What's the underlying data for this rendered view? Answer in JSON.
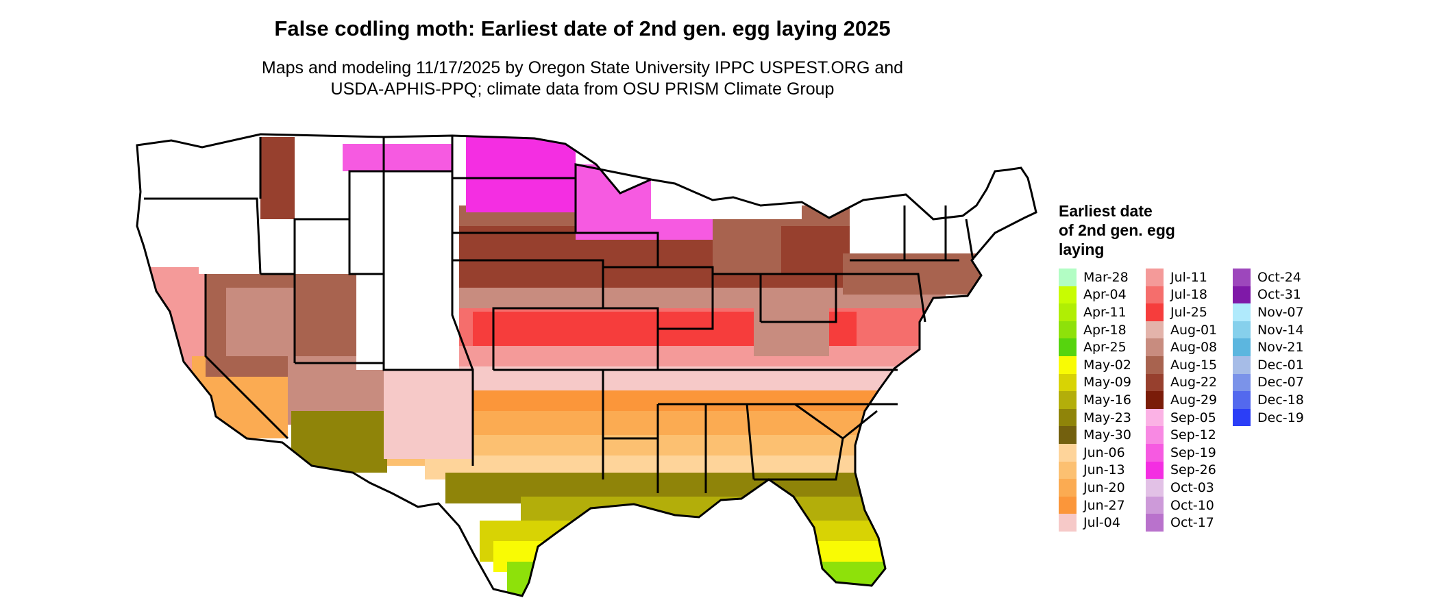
{
  "title": "False codling moth: Earliest date of 2nd gen. egg laying 2025",
  "subtitle_lines": [
    "Maps and modeling 11/17/2025 by Oregon State University IPPC USPEST.ORG and",
    "USDA-APHIS-PPQ; climate data from OSU PRISM Climate Group"
  ],
  "legend": {
    "title_lines": [
      "Earliest date",
      "of 2nd gen. egg",
      "laying"
    ],
    "columns": [
      [
        {
          "label": "Mar-28",
          "color": "#b2fdc4"
        },
        {
          "label": "Apr-04",
          "color": "#c8fc02"
        },
        {
          "label": "Apr-11",
          "color": "#b0ee04"
        },
        {
          "label": "Apr-18",
          "color": "#8ee10a"
        },
        {
          "label": "Apr-25",
          "color": "#56d40e"
        },
        {
          "label": "May-02",
          "color": "#f9fb04"
        },
        {
          "label": "May-09",
          "color": "#d8d304"
        },
        {
          "label": "May-16",
          "color": "#b3ae0a"
        },
        {
          "label": "May-23",
          "color": "#8f8409"
        },
        {
          "label": "May-30",
          "color": "#73600e"
        },
        {
          "label": "Jun-06",
          "color": "#fed49a"
        },
        {
          "label": "Jun-13",
          "color": "#fcc071"
        },
        {
          "label": "Jun-20",
          "color": "#fbab52"
        },
        {
          "label": "Jun-27",
          "color": "#fb963a"
        },
        {
          "label": "Jul-04",
          "color": "#f6c9c8"
        }
      ],
      [
        {
          "label": "Jul-11",
          "color": "#f49a99"
        },
        {
          "label": "Jul-18",
          "color": "#f56e6c"
        },
        {
          "label": "Jul-25",
          "color": "#f63d3c"
        },
        {
          "label": "Aug-01",
          "color": "#e3b3aa"
        },
        {
          "label": "Aug-08",
          "color": "#c88c7f"
        },
        {
          "label": "Aug-15",
          "color": "#a8634f"
        },
        {
          "label": "Aug-22",
          "color": "#97402e"
        },
        {
          "label": "Aug-29",
          "color": "#7a1c09"
        },
        {
          "label": "Sep-05",
          "color": "#fbb2e5"
        },
        {
          "label": "Sep-12",
          "color": "#f889e3"
        },
        {
          "label": "Sep-19",
          "color": "#f65ae1"
        },
        {
          "label": "Sep-26",
          "color": "#f42ee2"
        },
        {
          "label": "Oct-03",
          "color": "#e2c1e6"
        },
        {
          "label": "Oct-10",
          "color": "#cd9ad9"
        },
        {
          "label": "Oct-17",
          "color": "#b972cc"
        }
      ],
      [
        {
          "label": "Oct-24",
          "color": "#9d47bc"
        },
        {
          "label": "Oct-31",
          "color": "#7f19a8"
        },
        {
          "label": "Nov-07",
          "color": "#b0eafc"
        },
        {
          "label": "Nov-14",
          "color": "#86d0ec"
        },
        {
          "label": "Nov-21",
          "color": "#5cb6df"
        },
        {
          "label": "Dec-01",
          "color": "#a6bce7"
        },
        {
          "label": "Dec-07",
          "color": "#7b93e9"
        },
        {
          "label": "Dec-18",
          "color": "#5369ee"
        },
        {
          "label": "Dec-19",
          "color": "#2b3ef7"
        }
      ]
    ]
  }
}
